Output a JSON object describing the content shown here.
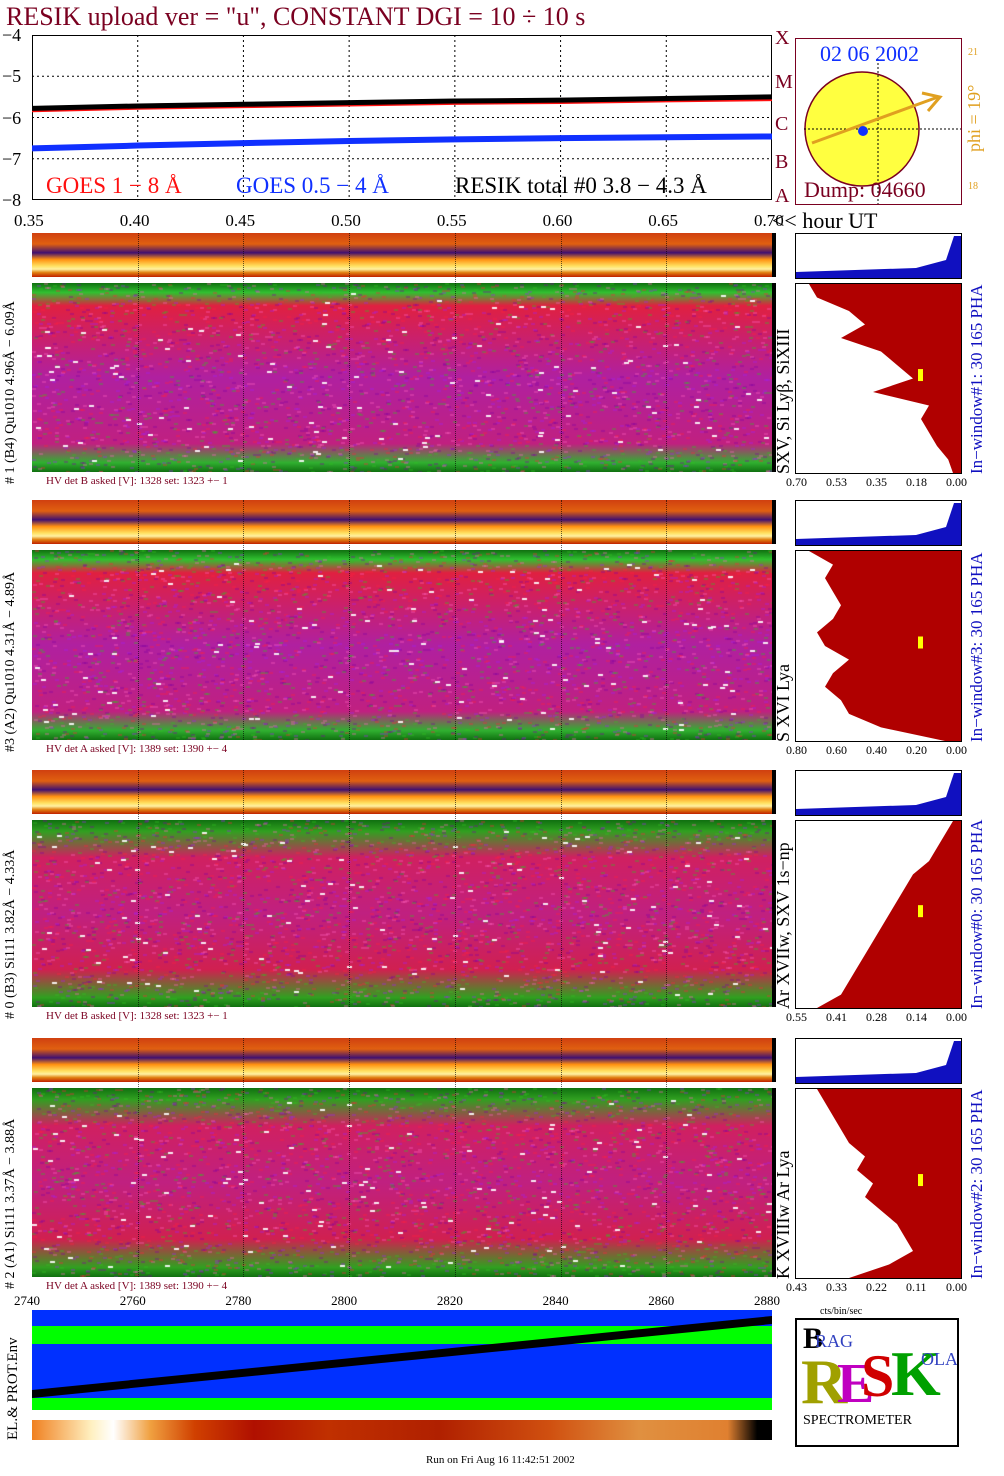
{
  "title": "RESIK upload ver = \"u\", CONSTANT  DGI =  10 ÷  10 s",
  "date": "02 06 2002",
  "dump": "Dump: 04660",
  "phi": "phi = 19°",
  "sun_ticks": [
    "21",
    "18"
  ],
  "goes_classes": [
    "X",
    "M",
    "C",
    "B",
    "A"
  ],
  "legend": {
    "goes18": "GOES 1 − 8 Å",
    "goes054": "GOES 0.5 − 4 Å",
    "resik": "RESIK total #0  3.8 − 4.3 Å"
  },
  "hour_axis_label": "<< hour UT",
  "colors": {
    "title": "#7a0020",
    "goes18": "#ff1010",
    "goes054": "#1030ff",
    "resik": "#000000",
    "pha": "#b00000",
    "pha_blue": "#1010c0"
  },
  "chart_data": {
    "type": "line",
    "y_ticks": [
      "−4",
      "−5",
      "−6",
      "−7",
      "−8"
    ],
    "ylim": [
      -8,
      -4
    ],
    "x_ticks": [
      "0.35",
      "0.40",
      "0.45",
      "0.50",
      "0.55",
      "0.60",
      "0.65",
      "0.70"
    ],
    "xlim": [
      0.35,
      0.7
    ],
    "x": [
      0.35,
      0.4,
      0.45,
      0.5,
      0.55,
      0.6,
      0.65,
      0.7
    ],
    "series": [
      {
        "name": "GOES 1 − 8 Å",
        "color": "#ff1010",
        "values": [
          -5.8,
          -5.74,
          -5.7,
          -5.66,
          -5.62,
          -5.6,
          -5.56,
          -5.53
        ]
      },
      {
        "name": "GOES 0.5 − 4 Å",
        "color": "#1030ff",
        "values": [
          -6.75,
          -6.68,
          -6.62,
          -6.57,
          -6.53,
          -6.5,
          -6.48,
          -6.46
        ]
      },
      {
        "name": "RESIK total #0  3.8 − 4.3 Å",
        "color": "#000000",
        "values": [
          -5.78,
          -5.72,
          -5.68,
          -5.64,
          -5.6,
          -5.58,
          -5.54,
          -5.5
        ]
      }
    ]
  },
  "channels": [
    {
      "label": "# 1 (B4) Qu1010 4.96Å − 6.09Å",
      "hv": "HV det B asked [V]:  1328 set:  1323 +−    1",
      "lines": "SXV, Si Lyβ, SiXIII",
      "window": "In−window#1:   30 165 PHA",
      "pha_ticks": [
        "0.70",
        "0.53",
        "0.35",
        "0.18",
        "0.00"
      ],
      "pha_profile": [
        0.95,
        0.9,
        0.7,
        0.6,
        0.75,
        0.5,
        0.4,
        0.3,
        0.55,
        0.2,
        0.25,
        0.2,
        0.15,
        0.08,
        0.05
      ]
    },
    {
      "label": "#3 (A2) Qu1010  4.31Å − 4.89Å",
      "hv": "HV det A asked [V]:  1389 set:  1390 +−    4",
      "lines": "S XVI Lya",
      "window": "In−window#3:   30 165 PHA",
      "pha_ticks": [
        "0.80",
        "0.60",
        "0.40",
        "0.20",
        "0.00"
      ],
      "pha_profile": [
        0.95,
        0.8,
        0.85,
        0.8,
        0.75,
        0.8,
        0.9,
        0.85,
        0.7,
        0.8,
        0.85,
        0.75,
        0.7,
        0.5,
        0.1
      ]
    },
    {
      "label": "# 0 (B3) Si111  3.82Å − 4.33Å",
      "hv": "HV det B asked [V]:  1328 set:  1323 +−    1",
      "lines": "Ar XVIIw, SXV 1s−np",
      "window": "In−window#0:   30 165 PHA",
      "pha_ticks": [
        "0.55",
        "0.41",
        "0.28",
        "0.14",
        "0.00"
      ],
      "pha_profile": [
        0.05,
        0.1,
        0.15,
        0.2,
        0.3,
        0.35,
        0.4,
        0.45,
        0.5,
        0.55,
        0.6,
        0.65,
        0.7,
        0.75,
        0.9
      ]
    },
    {
      "label": "# 2 (A1) Si111  3.37Å − 3.88Å",
      "hv": "HV det A asked [V]:  1389 set:  1390 +−    4",
      "lines": "K XVIIIw  Ar Lya",
      "window": "In−window#2:   30 165 PHA",
      "pha_ticks": [
        "0.43",
        "0.33",
        "0.22",
        "0.11",
        "0.00"
      ],
      "pha_profile": [
        0.9,
        0.85,
        0.8,
        0.75,
        0.7,
        0.6,
        0.65,
        0.55,
        0.6,
        0.5,
        0.4,
        0.35,
        0.3,
        0.45,
        0.7
      ]
    }
  ],
  "seconds_axis": {
    "ticks": [
      "2740",
      "2760",
      "2780",
      "2800",
      "2820",
      "2840",
      "2860",
      "2880"
    ]
  },
  "pha_xlabel": "cts/bin/sec",
  "env_label": "EL.& PROT.Env",
  "logo": {
    "caption": "SPECTROMETER"
  },
  "footer": "Run on Fri Aug 16 11:42:51 2002"
}
